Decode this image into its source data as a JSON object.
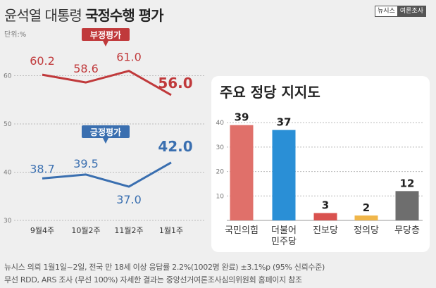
{
  "header": {
    "title_regular": "윤석열 대통령 ",
    "title_bold": "국정수행 평가",
    "brand_left": "뉴시스",
    "brand_right": "여론조사",
    "unit": "단위:%"
  },
  "colors": {
    "negative": "#c0393b",
    "positive": "#3a6fb0",
    "accent_label_bg_neg": "#c0393b",
    "accent_label_bg_pos": "#3a6fb0"
  },
  "chart_data": [
    {
      "type": "line",
      "x": [
        "9월4주",
        "10월2주",
        "11월2주",
        "1월1주"
      ],
      "ylim": [
        30,
        65
      ],
      "yticks": [
        30,
        40,
        50,
        60
      ],
      "grid": true,
      "series": [
        {
          "name": "부정평가",
          "values": [
            60.2,
            58.6,
            61.0,
            56.0
          ],
          "labels": [
            "60.2",
            "58.6",
            "61.0",
            "56.0"
          ]
        },
        {
          "name": "긍정평가",
          "values": [
            38.7,
            39.5,
            37.0,
            42.0
          ],
          "labels": [
            "38.7",
            "39.5",
            "37.0",
            "42.0"
          ]
        }
      ]
    },
    {
      "type": "bar",
      "title": "주요 정당 지지도",
      "categories": [
        "국민의힘",
        "더불어\n민주당",
        "진보당",
        "정의당",
        "무당층"
      ],
      "values": [
        39,
        37,
        3,
        2,
        12
      ],
      "ylim": [
        0,
        42
      ],
      "yticks": [
        10,
        20,
        30,
        40
      ],
      "colors": [
        "#e0706a",
        "#2a8fd6",
        "#d9524f",
        "#f0b64a",
        "#6e6e6e"
      ]
    }
  ],
  "footer": {
    "line1": "뉴시스 의뢰 1월1일~2일, 전국 만 18세 이상 응답률 2.2%(1002명 완료) ±3.1%p (95% 신뢰수준)",
    "line2": "무선 RDD, ARS 조사 (무선 100%) 자세한 결과는 중앙선거여론조사심의위원회 홈페이지 참조"
  }
}
